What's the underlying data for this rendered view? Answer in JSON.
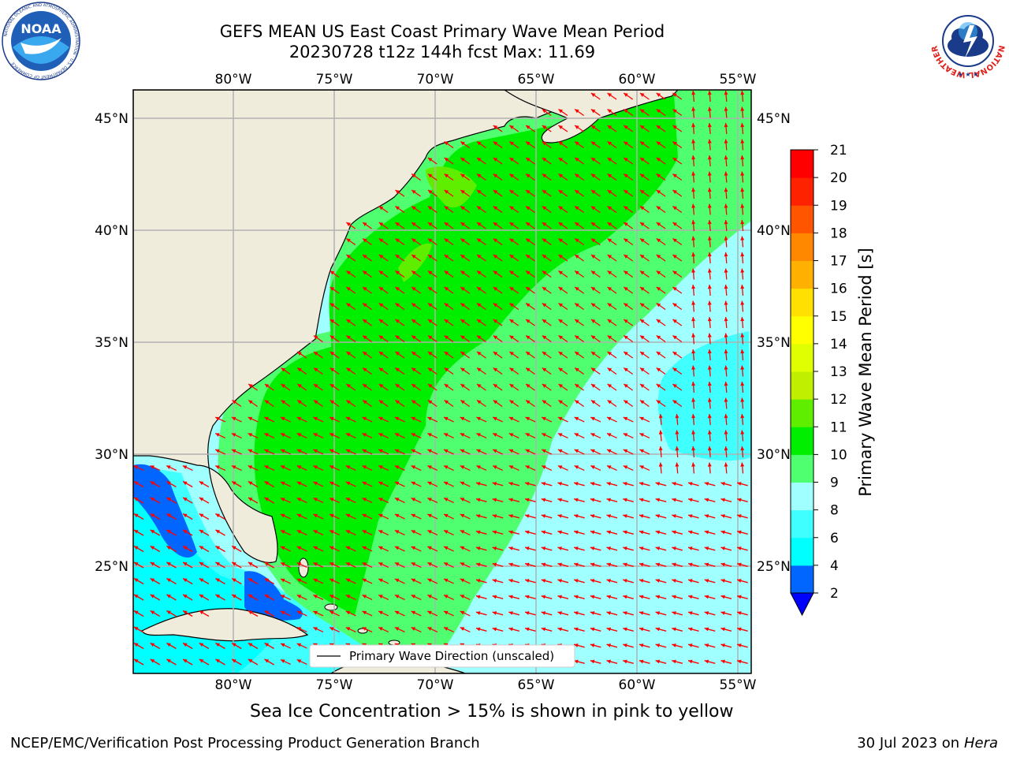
{
  "header": {
    "title_line1": "GEFS MEAN US East Coast Primary Wave Mean Period",
    "title_line2": "20230728 t12z 144h fcst   Max: 11.69"
  },
  "logos": {
    "left": "noaa-logo",
    "left_text": "NOAA",
    "left_ring_text": "NATIONAL OCEANIC AND ATMOSPHERIC ADMINISTRATION · U.S. DEPARTMENT OF COMMERCE",
    "right": "national-weather-service-logo",
    "right_ring_text": "NATIONAL WEATHER SERVICE"
  },
  "map": {
    "lon_ticks": [
      "80°W",
      "75°W",
      "70°W",
      "65°W",
      "60°W",
      "55°W"
    ],
    "lat_ticks": [
      "45°N",
      "40°N",
      "35°N",
      "30°N",
      "25°N"
    ],
    "extent": {
      "lon": [
        -85,
        -54.5
      ],
      "lat": [
        20.5,
        46.3
      ]
    },
    "grid": true,
    "land_color": "#efecdc",
    "arrow_color": "#ff0000",
    "legend_label": "Primary Wave Direction (unscaled)"
  },
  "colorbar": {
    "label": "Primary Wave Mean Period [s]",
    "levels": [
      "2",
      "4",
      "6",
      "8",
      "9",
      "10",
      "11",
      "12",
      "13",
      "14",
      "15",
      "16",
      "17",
      "18",
      "19",
      "20",
      "21"
    ],
    "colors": [
      "#0066ff",
      "#00ffff",
      "#40ffff",
      "#a0ffff",
      "#50ff70",
      "#00ee00",
      "#60ee00",
      "#c0f000",
      "#e0ff00",
      "#ffff00",
      "#ffe000",
      "#ffb000",
      "#ff8800",
      "#ff5500",
      "#ff2200",
      "#ff0000"
    ],
    "under_color": "#0000ff"
  },
  "notes": {
    "sea_ice": "Sea Ice Concentration > 15% is shown in pink to yellow"
  },
  "footer": {
    "left": "NCEP/EMC/Verification Post Processing Product Generation Branch",
    "right_date": "30 Jul 2023 on ",
    "right_host": "Hera"
  }
}
